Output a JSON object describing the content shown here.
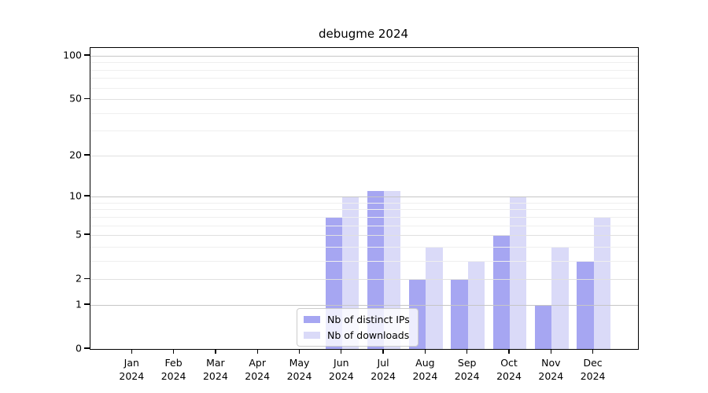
{
  "chart_data": {
    "type": "bar",
    "title": "debugme 2024",
    "categories": [
      "Jan",
      "Feb",
      "Mar",
      "Apr",
      "May",
      "Jun",
      "Jul",
      "Aug",
      "Sep",
      "Oct",
      "Nov",
      "Dec"
    ],
    "x_tick_year": "2024",
    "series": [
      {
        "name": "Nb of distinct IPs",
        "color": "#a6a6f2",
        "values": [
          0,
          0,
          0,
          0,
          0,
          7,
          11,
          2,
          2,
          5,
          1,
          3
        ]
      },
      {
        "name": "Nb of downloads",
        "color": "#dadaf8",
        "values": [
          0,
          0,
          0,
          0,
          0,
          10,
          11,
          4,
          3,
          10,
          4,
          7
        ]
      }
    ],
    "y_axis": {
      "scale": "log1p",
      "tick_values": [
        0,
        1,
        2,
        5,
        10,
        20,
        50,
        100
      ],
      "tick_labels": [
        "0",
        "1",
        "2",
        "5",
        "10",
        "20",
        "50",
        "100"
      ],
      "major_gridline_values": [
        1,
        10,
        100
      ],
      "mid_gridline_values": [
        2,
        5,
        20,
        50
      ],
      "minor_gridline_values": [
        3,
        4,
        6,
        7,
        8,
        9,
        30,
        40,
        60,
        70,
        80,
        90
      ],
      "ylim": [
        0,
        113
      ]
    },
    "legend": {
      "position": "lower center"
    },
    "grid": true,
    "colors": {
      "major_grid": "#c6c6c6",
      "mid_grid": "#e0e0e0",
      "minor_grid": "#efefef",
      "spine": "#000000",
      "background": "#ffffff"
    }
  }
}
